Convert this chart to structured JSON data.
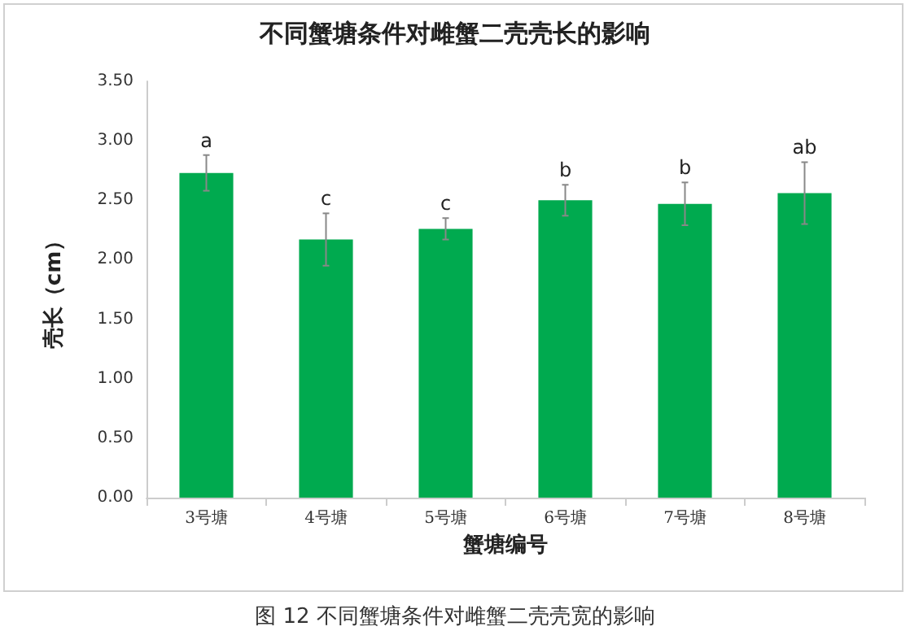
{
  "chart_data": {
    "type": "bar",
    "title": "不同蟹塘条件对雌蟹二壳壳长的影响",
    "xlabel": "蟹塘编号",
    "ylabel": "壳长（cm）",
    "categories": [
      "3号塘",
      "4号塘",
      "5号塘",
      "6号塘",
      "7号塘",
      "8号塘"
    ],
    "values": [
      2.73,
      2.17,
      2.26,
      2.5,
      2.47,
      2.56
    ],
    "errors": [
      0.15,
      0.22,
      0.09,
      0.13,
      0.18,
      0.26
    ],
    "color": "#00aa4f",
    "ylim": [
      0,
      3.5
    ],
    "yticks": [
      {
        "value": 0,
        "label": "0.00"
      },
      {
        "value": 0.5,
        "label": "0.50"
      },
      {
        "value": 1,
        "label": "1.00"
      },
      {
        "value": 1.5,
        "label": "1.50"
      },
      {
        "value": 2,
        "label": "2.00"
      },
      {
        "value": 2.5,
        "label": "2.50"
      },
      {
        "value": 3,
        "label": "3.00"
      },
      {
        "value": 3.5,
        "label": "3.50"
      }
    ],
    "grid": false,
    "annotations": [
      {
        "text": "a",
        "x": "3号塘",
        "y": 2.88
      },
      {
        "text": "c",
        "x": "4号塘",
        "y": 2.39
      },
      {
        "text": "c",
        "x": "5号塘",
        "y": 2.35
      },
      {
        "text": "b",
        "x": "6号塘",
        "y": 2.63
      },
      {
        "text": "b",
        "x": "7号塘",
        "y": 2.65
      },
      {
        "text": "ab",
        "x": "8号塘",
        "y": 2.82
      },
      "图 12 不同蟹塘条件对雌蟹二壳壳宽的影响"
    ]
  }
}
